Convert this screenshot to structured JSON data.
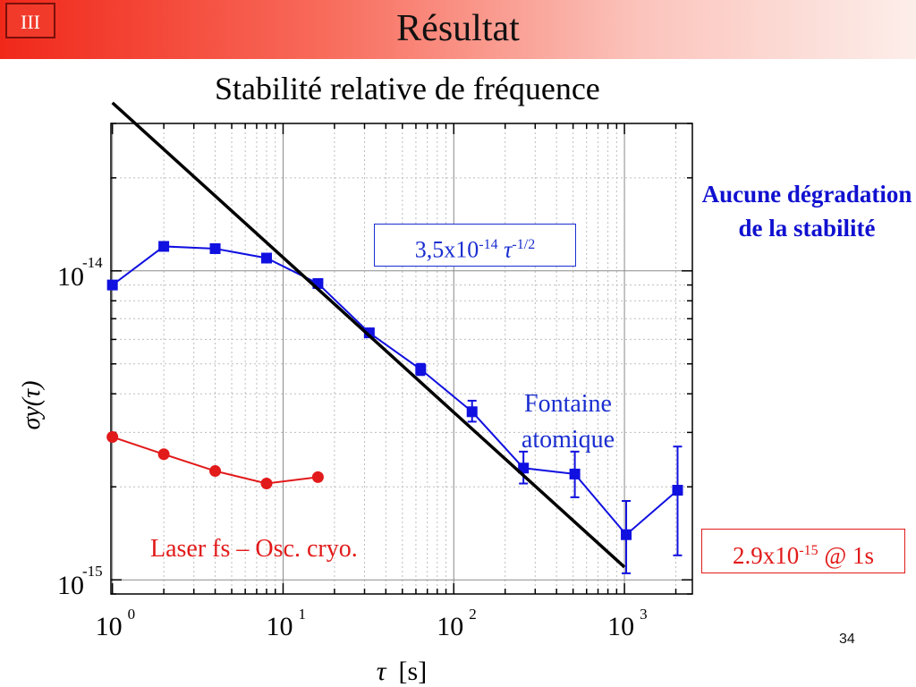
{
  "slide": {
    "section_badge": "III",
    "title": "Résultat",
    "page_number": "34",
    "note_right": "Aucune dégradation de la stabilité"
  },
  "chart_data": {
    "type": "scatter",
    "title": "Stabilité relative de fréquence",
    "xlabel": "τ [s]",
    "xlabel_parts": {
      "symbol": "τ",
      "unit": "[s]"
    },
    "ylabel": "σy(τ)",
    "xscale": "log",
    "yscale": "log",
    "xlim": [
      0.98,
      2500
    ],
    "ylim": [
      9e-16,
      3e-14
    ],
    "grid": true,
    "x_ticks": [
      {
        "value": 1,
        "base": "10",
        "exp": "0"
      },
      {
        "value": 10,
        "base": "10",
        "exp": "1"
      },
      {
        "value": 100,
        "base": "10",
        "exp": "2"
      },
      {
        "value": 1000,
        "base": "10",
        "exp": "3"
      }
    ],
    "y_ticks": [
      {
        "value": 1e-15,
        "base": "10",
        "exp": "-15"
      },
      {
        "value": 1e-14,
        "base": "10",
        "exp": "-14"
      }
    ],
    "series": [
      {
        "name": "Fontaine atomique",
        "color": "#1010e0",
        "marker": "square",
        "x": [
          1,
          2,
          4,
          8,
          16,
          32,
          64,
          128,
          256,
          512,
          1024,
          2048
        ],
        "y": [
          9e-15,
          1.2e-14,
          1.18e-14,
          1.1e-14,
          9.1e-15,
          6.3e-15,
          4.8e-15,
          3.5e-15,
          2.3e-15,
          2.2e-15,
          1.4e-15,
          1.95e-15
        ],
        "err_low": [
          null,
          null,
          null,
          null,
          null,
          6.1e-15,
          4.6e-15,
          3.25e-15,
          2.05e-15,
          1.85e-15,
          1.05e-15,
          1.2e-15
        ],
        "err_high": [
          null,
          null,
          null,
          null,
          null,
          6.5e-15,
          5e-15,
          3.8e-15,
          2.6e-15,
          2.6e-15,
          1.8e-15,
          2.7e-15
        ]
      },
      {
        "name": "Laser fs – Osc. cryo.",
        "color": "#e21a1a",
        "marker": "circle",
        "x": [
          1,
          2,
          4,
          8,
          16
        ],
        "y": [
          2.9e-15,
          2.55e-15,
          2.25e-15,
          2.05e-15,
          2.15e-15
        ]
      },
      {
        "name": "3,5x10-14 τ-1/2",
        "color": "#000000",
        "marker": "none",
        "x": [
          1,
          1000
        ],
        "y": [
          3.5e-14,
          1.1e-15
        ]
      }
    ],
    "annotations": {
      "fit_label": {
        "mantissa": "3,5x10",
        "exp": "-14",
        "symbol": "τ",
        "power": "-1/2"
      },
      "fountain_label": "Fontaine atomique",
      "laser_label": "Laser fs – Osc. cryo.",
      "red_box": {
        "mantissa": "2.9x10",
        "exp": "-15",
        "suffix": " @ 1s"
      }
    }
  }
}
